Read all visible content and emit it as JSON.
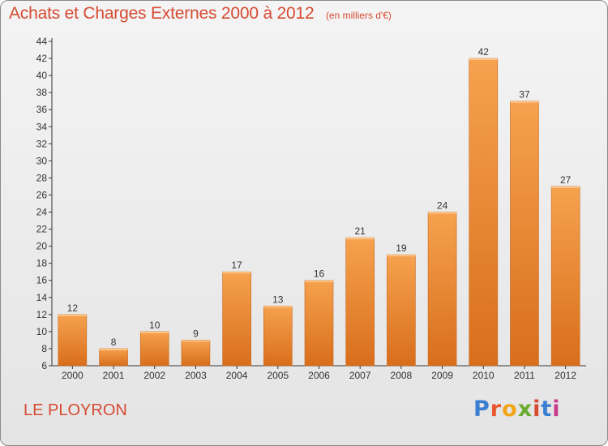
{
  "title": "Achats et Charges Externes 2000 à 2012",
  "subtitle": "(en milliers d'€)",
  "commune": "LE PLOYRON",
  "logo": {
    "letters": [
      "P",
      "r",
      "o",
      "x",
      "i",
      "t",
      "i"
    ],
    "colors": [
      "#3a7fd0",
      "#e8572f",
      "#f2a516",
      "#6aab2f",
      "#d64b32",
      "#3a7fd0",
      "#c93a8e"
    ]
  },
  "colors": {
    "bar_top": "#f6a24e",
    "bar_bottom": "#d86e1c",
    "title": "#d64b32",
    "axis": "#333333"
  },
  "chart_data": {
    "type": "bar",
    "categories": [
      "2000",
      "2001",
      "2002",
      "2003",
      "2004",
      "2005",
      "2006",
      "2007",
      "2008",
      "2009",
      "2010",
      "2011",
      "2012"
    ],
    "values": [
      12,
      8,
      10,
      9,
      17,
      13,
      16,
      21,
      19,
      24,
      42,
      37,
      27
    ],
    "ylim": [
      6,
      44
    ],
    "yticks": [
      6,
      8,
      10,
      12,
      14,
      16,
      18,
      20,
      22,
      24,
      26,
      28,
      30,
      32,
      34,
      36,
      38,
      40,
      42,
      44
    ],
    "grid": false,
    "data_labels": true
  }
}
